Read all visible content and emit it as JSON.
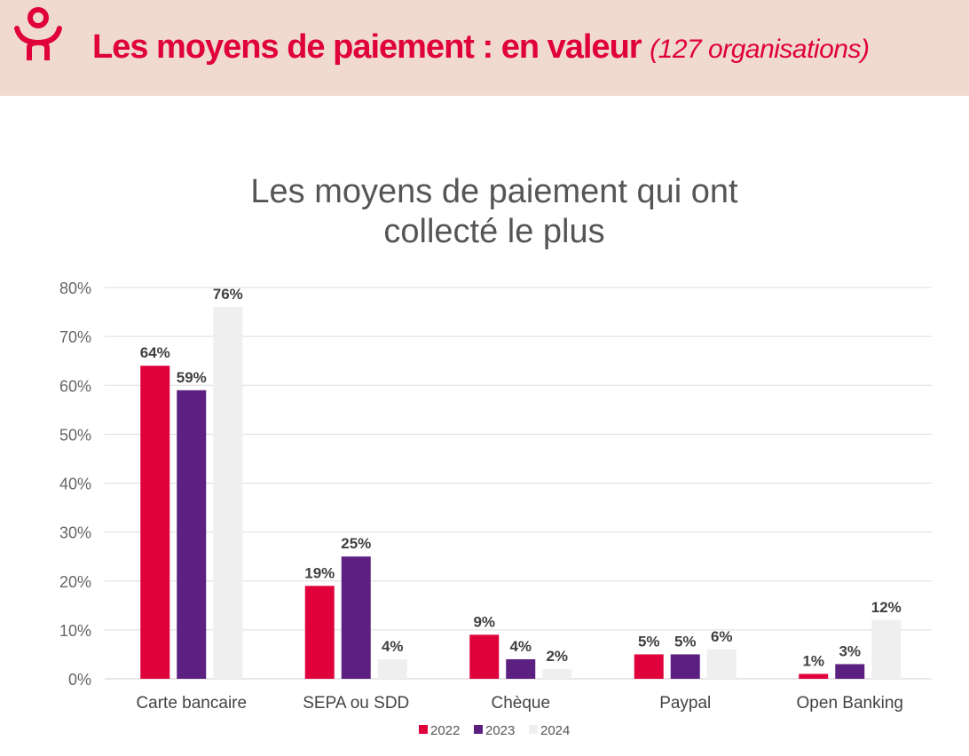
{
  "header": {
    "title": "Les moyens de paiement : en valeur",
    "subtitle": "(127 organisations)",
    "accent_color": "#e0003c",
    "logo_icon": "person-arms-up-icon"
  },
  "chart_data": {
    "type": "bar",
    "title_line1": "Les moyens de paiement qui ont",
    "title_line2": "collecté le plus",
    "categories": [
      "Carte bancaire",
      "SEPA ou SDD",
      "Chèque",
      "Paypal",
      "Open Banking"
    ],
    "series": [
      {
        "name": "2022",
        "color": "#e0003c",
        "values": [
          64,
          19,
          9,
          5,
          1
        ],
        "labels": [
          "64%",
          "19%",
          "9%",
          "5%",
          "1%"
        ]
      },
      {
        "name": "2023",
        "color": "#5b2080",
        "values": [
          59,
          25,
          4,
          5,
          3
        ],
        "labels": [
          "59%",
          "25%",
          "4%",
          "5%",
          "3%"
        ]
      },
      {
        "name": "2024",
        "color": "#efefef",
        "values": [
          76,
          4,
          2,
          6,
          12
        ],
        "labels": [
          "76%",
          "4%",
          "2%",
          "6%",
          "12%"
        ]
      }
    ],
    "ylim": [
      0,
      80
    ],
    "yticks": [
      0,
      10,
      20,
      30,
      40,
      50,
      60,
      70,
      80
    ],
    "ytick_labels": [
      "0%",
      "10%",
      "20%",
      "30%",
      "40%",
      "50%",
      "60%",
      "70%",
      "80%"
    ],
    "grid": true,
    "legend": "bottom"
  }
}
